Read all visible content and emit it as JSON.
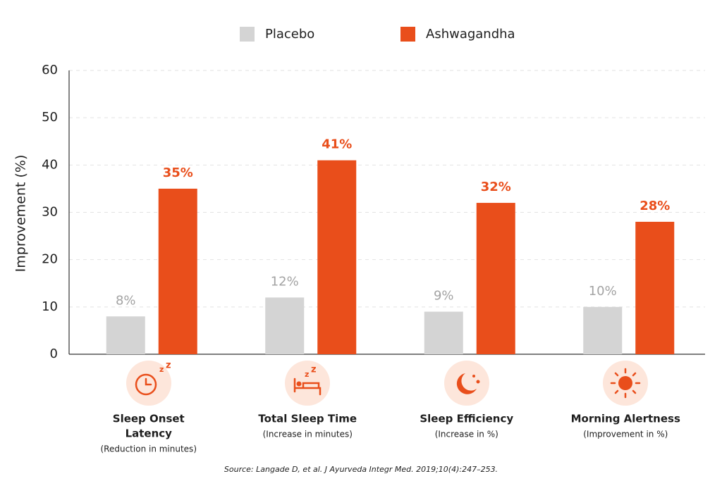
{
  "chart_data": {
    "type": "bar",
    "y_label": "Improvement (%)",
    "categories": [
      [
        "Sleep Onset",
        "Latency"
      ],
      [
        "Total Sleep Time"
      ],
      [
        "Sleep Efficiency"
      ],
      [
        "Morning Alertness"
      ]
    ],
    "category_notes": [
      "(Reduction in minutes)",
      "(Increase in minutes)",
      "(Increase in %)",
      "(Improvement in %)"
    ],
    "series": [
      {
        "name": "Placebo",
        "color": "#d4d4d4",
        "label_color": "#a3a3a3",
        "values": [
          8,
          12,
          9,
          10
        ],
        "value_labels": [
          "8%",
          "12%",
          "9%",
          "10%"
        ]
      },
      {
        "name": "Ashwagandha",
        "color": "#e94e1b",
        "label_color": "#e94e1b",
        "values": [
          35,
          41,
          32,
          28
        ],
        "value_labels": [
          "35%",
          "41%",
          "32%",
          "28%"
        ]
      }
    ],
    "ylim": [
      0,
      60
    ],
    "yticks": [
      0,
      10,
      20,
      30,
      40,
      50,
      60
    ],
    "grid": true,
    "source": "Source: Langade D, et al. J Ayurveda Integr Med. 2019;10(4):247–253."
  }
}
